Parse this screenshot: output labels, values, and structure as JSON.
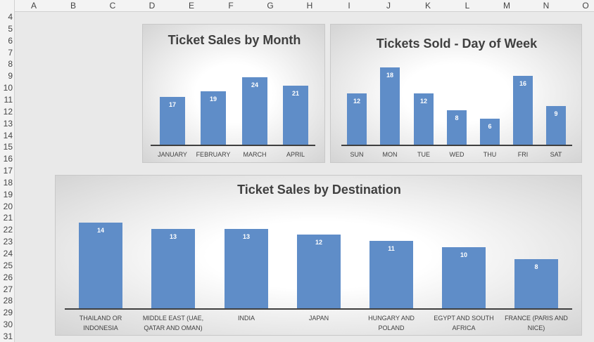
{
  "columns": [
    "A",
    "B",
    "C",
    "D",
    "E",
    "F",
    "G",
    "H",
    "I",
    "J",
    "K",
    "L",
    "M",
    "N",
    "O"
  ],
  "rows": [
    4,
    5,
    6,
    7,
    8,
    9,
    10,
    11,
    12,
    13,
    14,
    15,
    16,
    17,
    18,
    19,
    20,
    21,
    22,
    23,
    24,
    25,
    26,
    27,
    28,
    29,
    30,
    31
  ],
  "chart_data": [
    {
      "type": "bar",
      "title": "Ticket Sales by Month",
      "categories": [
        "JANUARY",
        "FEBRUARY",
        "MARCH",
        "APRIL"
      ],
      "values": [
        17,
        19,
        24,
        21
      ],
      "color": "#5f8dc8"
    },
    {
      "type": "bar",
      "title": "Tickets Sold - Day of Week",
      "categories": [
        "SUN",
        "MON",
        "TUE",
        "WED",
        "THU",
        "FRI",
        "SAT"
      ],
      "values": [
        12,
        18,
        12,
        8,
        6,
        16,
        9
      ],
      "color": "#5f8dc8"
    },
    {
      "type": "bar",
      "title": "Ticket Sales by Destination",
      "categories": [
        "THAILAND OR INDONESIA",
        "MIDDLE EAST (UAE, QATAR AND OMAN)",
        "INDIA",
        "JAPAN",
        "HUNGARY AND POLAND",
        "EGYPT AND SOUTH AFRICA",
        "FRANCE (PARIS AND NICE)"
      ],
      "values": [
        14,
        13,
        13,
        12,
        11,
        10,
        8
      ],
      "color": "#5f8dc8"
    }
  ]
}
